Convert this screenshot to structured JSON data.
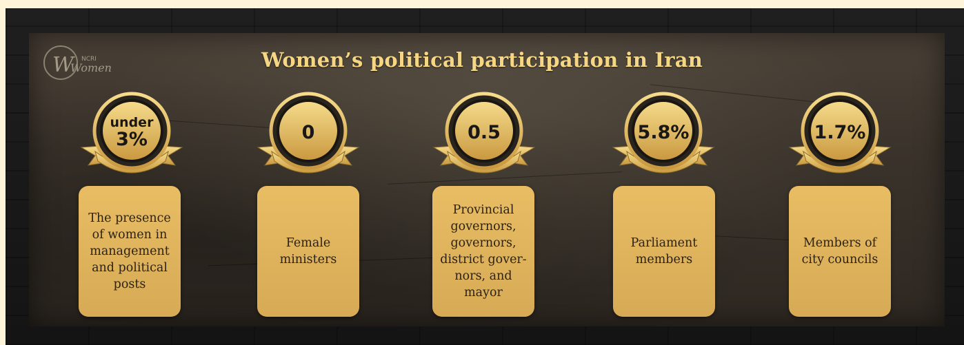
{
  "title": "Women’s political participation in Iran",
  "logo": {
    "text": "Women",
    "small": "NCRI",
    "icon": "ncri-women-logo"
  },
  "colors": {
    "gold": "#f4d684",
    "card": "#e0b45c",
    "background": "#2e2822"
  },
  "stats": [
    {
      "prefix": "under",
      "value": "3%",
      "label": "The presence\nof women in\nmanagement\nand political\nposts"
    },
    {
      "prefix": "",
      "value": "0",
      "label": "Female\nministers"
    },
    {
      "prefix": "",
      "value": "0.5",
      "label": "Provincial\ngovernors,\ngovernors,\ndistrict gover-\nnors, and\nmayor"
    },
    {
      "prefix": "",
      "value": "5.8%",
      "label": "Parliament\nmembers"
    },
    {
      "prefix": "",
      "value": "1.7%",
      "label": "Members of\ncity councils"
    }
  ]
}
